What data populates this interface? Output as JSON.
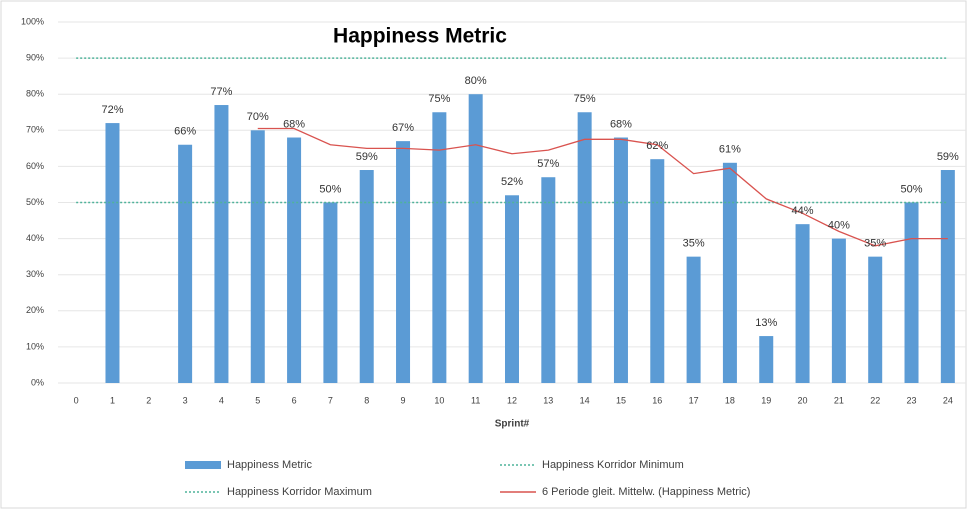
{
  "chart_data": {
    "type": "bar",
    "title": "Happiness Metric",
    "x_label": "Sprint#",
    "categories": [
      "0",
      "1",
      "2",
      "3",
      "4",
      "5",
      "6",
      "7",
      "8",
      "9",
      "10",
      "11",
      "12",
      "13",
      "14",
      "15",
      "16",
      "17",
      "18",
      "19",
      "20",
      "21",
      "22",
      "23",
      "24"
    ],
    "ylim": [
      0,
      100
    ],
    "yticks": [
      {
        "value": 0,
        "label": "0%"
      },
      {
        "value": 10,
        "label": "10%"
      },
      {
        "value": 20,
        "label": "20%"
      },
      {
        "value": 30,
        "label": "30%"
      },
      {
        "value": 40,
        "label": "40%"
      },
      {
        "value": 50,
        "label": "50%"
      },
      {
        "value": 60,
        "label": "60%"
      },
      {
        "value": 70,
        "label": "70%"
      },
      {
        "value": 80,
        "label": "80%"
      },
      {
        "value": 90,
        "label": "90%"
      },
      {
        "value": 100,
        "label": "100%"
      }
    ],
    "grid": true,
    "legend": "bottom",
    "series": [
      {
        "name": "Happiness Metric",
        "kind": "bar",
        "color": "#5b9bd5",
        "values": [
          null,
          72,
          null,
          66,
          77,
          70,
          68,
          50,
          59,
          67,
          75,
          80,
          52,
          57,
          75,
          68,
          62,
          35,
          61,
          13,
          44,
          40,
          35,
          50,
          59
        ],
        "value_labels": [
          null,
          "72%",
          null,
          "66%",
          "77%",
          "70%",
          "68%",
          "50%",
          "59%",
          "67%",
          "75%",
          "80%",
          "52%",
          "57%",
          "75%",
          "68%",
          "62%",
          "35%",
          "61%",
          "13%",
          "44%",
          "40%",
          "35%",
          "50%",
          "59%"
        ]
      },
      {
        "name": "Happiness Korridor Minimum",
        "kind": "line",
        "dotted": true,
        "color": "#4fb39a",
        "values": [
          50,
          50,
          50,
          50,
          50,
          50,
          50,
          50,
          50,
          50,
          50,
          50,
          50,
          50,
          50,
          50,
          50,
          50,
          50,
          50,
          50,
          50,
          50,
          50,
          50
        ]
      },
      {
        "name": "Happiness Korridor Maximum",
        "kind": "line",
        "dotted": true,
        "color": "#4fb39a",
        "values": [
          90,
          90,
          90,
          90,
          90,
          90,
          90,
          90,
          90,
          90,
          90,
          90,
          90,
          90,
          90,
          90,
          90,
          90,
          90,
          90,
          90,
          90,
          90,
          90,
          90
        ]
      },
      {
        "name": "6 Periode gleit. Mittelw. (Happiness Metric)",
        "kind": "line",
        "dotted": false,
        "color": "#d9534f",
        "values": [
          null,
          null,
          null,
          null,
          null,
          70.5,
          70.5,
          66,
          65,
          65,
          64.5,
          66,
          63.5,
          64.5,
          67.5,
          67.5,
          66,
          58,
          59.5,
          51,
          47,
          42,
          38,
          40,
          40
        ]
      }
    ]
  }
}
